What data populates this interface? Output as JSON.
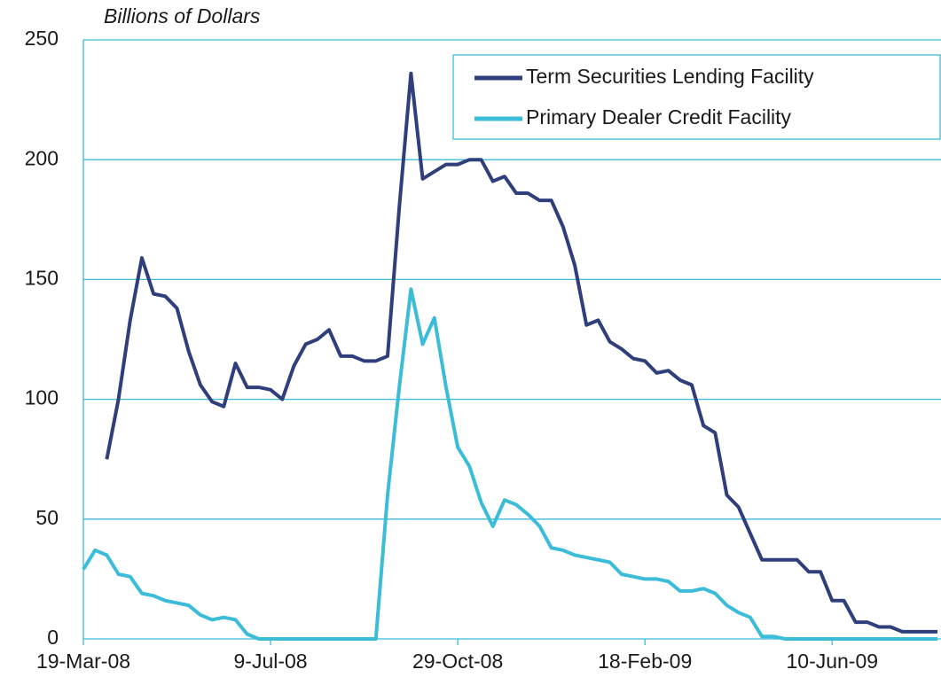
{
  "chart_data": {
    "type": "line",
    "title": "Billions of Dollars",
    "categories": [
      "19-Mar-08",
      null,
      null,
      null,
      null,
      null,
      null,
      null,
      null,
      null,
      null,
      null,
      null,
      null,
      null,
      null,
      "9-Jul-08",
      null,
      null,
      null,
      null,
      null,
      null,
      null,
      null,
      null,
      null,
      null,
      null,
      null,
      null,
      null,
      "29-Oct-08",
      null,
      null,
      null,
      null,
      null,
      null,
      null,
      null,
      null,
      null,
      null,
      null,
      null,
      null,
      null,
      "18-Feb-09",
      null,
      null,
      null,
      null,
      null,
      null,
      null,
      null,
      null,
      null,
      null,
      null,
      null,
      null,
      null,
      "10-Jun-09",
      null,
      null,
      null,
      null,
      null,
      null,
      null,
      null,
      null
    ],
    "series": [
      {
        "name": "Term Securities Lending Facility",
        "color": "#2e3f7c",
        "values": [
          null,
          null,
          75,
          100,
          133,
          159,
          144,
          143,
          138,
          120,
          106,
          99,
          97,
          115,
          105,
          105,
          104,
          100,
          114,
          123,
          125,
          129,
          118,
          118,
          116,
          116,
          118,
          180,
          236,
          192,
          195,
          198,
          198,
          200,
          200,
          191,
          193,
          186,
          186,
          183,
          183,
          172,
          156,
          131,
          133,
          124,
          121,
          117,
          116,
          111,
          112,
          108,
          106,
          89,
          86,
          60,
          55,
          44,
          33,
          33,
          33,
          33,
          28,
          28,
          16,
          16,
          7,
          7,
          5,
          5,
          3,
          3,
          3,
          3
        ]
      },
      {
        "name": "Primary Dealer Credit Facility",
        "color": "#3bbcd8",
        "values": [
          29,
          37,
          35,
          27,
          26,
          19,
          18,
          16,
          15,
          14,
          10,
          8,
          9,
          8,
          2,
          0,
          0,
          0,
          0,
          0,
          0,
          0,
          0,
          0,
          0,
          0,
          60,
          105,
          146,
          123,
          134,
          105,
          80,
          72,
          57,
          47,
          58,
          56,
          52,
          47,
          38,
          37,
          35,
          34,
          33,
          32,
          27,
          26,
          25,
          25,
          24,
          20,
          20,
          21,
          19,
          14,
          11,
          9,
          1,
          1,
          0,
          0,
          0,
          0,
          0,
          0,
          0,
          0,
          0,
          0,
          0,
          0,
          0,
          0
        ]
      }
    ],
    "ylim": [
      0,
      250
    ],
    "yticks": [
      0,
      50,
      100,
      150,
      200,
      250
    ],
    "grid": true,
    "legend": "upper right"
  }
}
